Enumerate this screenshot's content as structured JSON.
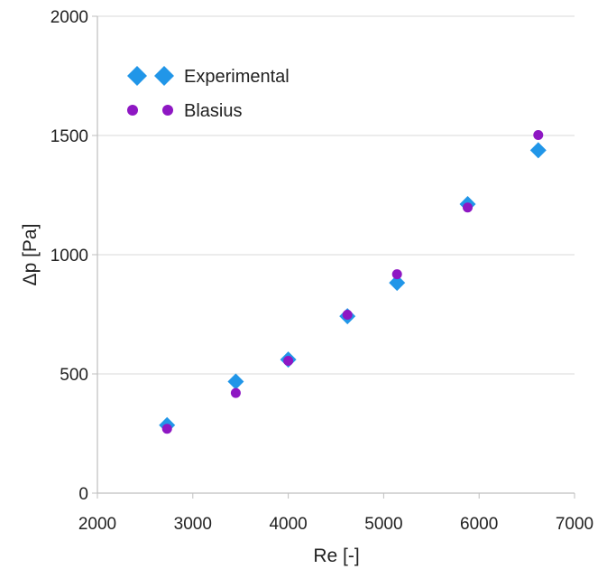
{
  "chart_data": {
    "type": "scatter",
    "title": "",
    "xlabel": "Re [-]",
    "ylabel": "Δp [Pa]",
    "xlim": [
      2000,
      7000
    ],
    "ylim": [
      0,
      2000
    ],
    "xticks": [
      "2000",
      "3000",
      "4000",
      "5000",
      "6000",
      "7000"
    ],
    "yticks": [
      "0",
      "500",
      "1000",
      "1500",
      "2000"
    ],
    "grid": "horizontal",
    "legend_position": "top-left",
    "series": [
      {
        "name": "Experimental",
        "marker": "diamond",
        "color": "#2196e8",
        "points": [
          {
            "x": 2730,
            "y": 285
          },
          {
            "x": 3450,
            "y": 468
          },
          {
            "x": 4000,
            "y": 560
          },
          {
            "x": 4620,
            "y": 742
          },
          {
            "x": 5140,
            "y": 882
          },
          {
            "x": 5880,
            "y": 1212
          },
          {
            "x": 6620,
            "y": 1438
          }
        ]
      },
      {
        "name": "Blasius",
        "marker": "circle",
        "color": "#8e17c3",
        "points": [
          {
            "x": 2730,
            "y": 270
          },
          {
            "x": 3450,
            "y": 420
          },
          {
            "x": 4000,
            "y": 555
          },
          {
            "x": 4620,
            "y": 748
          },
          {
            "x": 5140,
            "y": 918
          },
          {
            "x": 5880,
            "y": 1198
          },
          {
            "x": 6620,
            "y": 1502
          }
        ]
      }
    ]
  }
}
